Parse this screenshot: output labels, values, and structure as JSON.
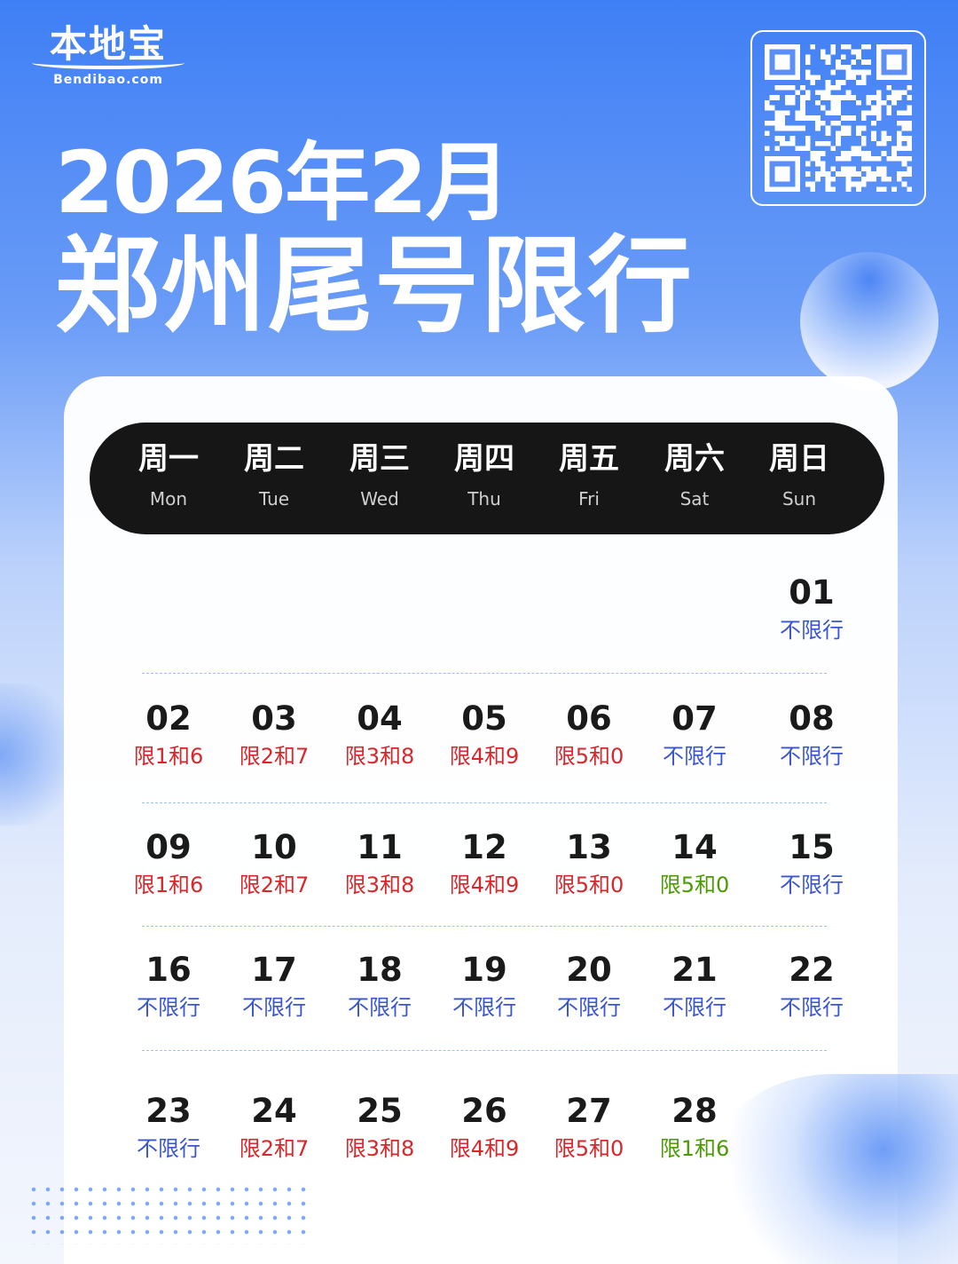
{
  "logo": {
    "cn": "本地宝",
    "en": "Bendibao.com"
  },
  "header": {
    "month": "2026年2月",
    "title": "郑州尾号限行"
  },
  "colors": {
    "red": "#d9262a",
    "blue": "#3a55d0",
    "green": "#4e9a06",
    "header_bar": "#161616"
  },
  "weekdays": [
    {
      "zh": "周一",
      "en": "Mon"
    },
    {
      "zh": "周二",
      "en": "Tue"
    },
    {
      "zh": "周三",
      "en": "Wed"
    },
    {
      "zh": "周四",
      "en": "Thu"
    },
    {
      "zh": "周五",
      "en": "Fri"
    },
    {
      "zh": "周六",
      "en": "Sat"
    },
    {
      "zh": "周日",
      "en": "Sun"
    }
  ],
  "weeks": [
    [
      null,
      null,
      null,
      null,
      null,
      null,
      {
        "day": "01",
        "rule": "不限行",
        "color": "blue"
      }
    ],
    [
      {
        "day": "02",
        "rule": "限1和6",
        "color": "red"
      },
      {
        "day": "03",
        "rule": "限2和7",
        "color": "red"
      },
      {
        "day": "04",
        "rule": "限3和8",
        "color": "red"
      },
      {
        "day": "05",
        "rule": "限4和9",
        "color": "red"
      },
      {
        "day": "06",
        "rule": "限5和0",
        "color": "red"
      },
      {
        "day": "07",
        "rule": "不限行",
        "color": "blue"
      },
      {
        "day": "08",
        "rule": "不限行",
        "color": "blue"
      }
    ],
    [
      {
        "day": "09",
        "rule": "限1和6",
        "color": "red"
      },
      {
        "day": "10",
        "rule": "限2和7",
        "color": "red"
      },
      {
        "day": "11",
        "rule": "限3和8",
        "color": "red"
      },
      {
        "day": "12",
        "rule": "限4和9",
        "color": "red"
      },
      {
        "day": "13",
        "rule": "限5和0",
        "color": "red"
      },
      {
        "day": "14",
        "rule": "限5和0",
        "color": "green"
      },
      {
        "day": "15",
        "rule": "不限行",
        "color": "blue"
      }
    ],
    [
      {
        "day": "16",
        "rule": "不限行",
        "color": "blue"
      },
      {
        "day": "17",
        "rule": "不限行",
        "color": "blue"
      },
      {
        "day": "18",
        "rule": "不限行",
        "color": "blue"
      },
      {
        "day": "19",
        "rule": "不限行",
        "color": "blue"
      },
      {
        "day": "20",
        "rule": "不限行",
        "color": "blue"
      },
      {
        "day": "21",
        "rule": "不限行",
        "color": "blue"
      },
      {
        "day": "22",
        "rule": "不限行",
        "color": "blue"
      }
    ],
    [
      {
        "day": "23",
        "rule": "不限行",
        "color": "blue"
      },
      {
        "day": "24",
        "rule": "限2和7",
        "color": "red"
      },
      {
        "day": "25",
        "rule": "限3和8",
        "color": "red"
      },
      {
        "day": "26",
        "rule": "限4和9",
        "color": "red"
      },
      {
        "day": "27",
        "rule": "限5和0",
        "color": "red"
      },
      {
        "day": "28",
        "rule": "限1和6",
        "color": "green"
      },
      null
    ]
  ]
}
